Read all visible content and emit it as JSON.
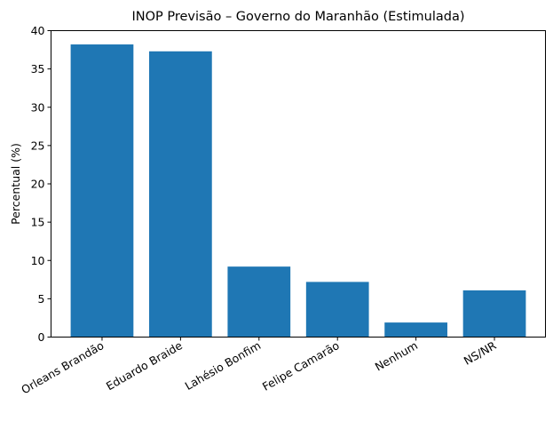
{
  "chart_data": {
    "type": "bar",
    "title": "INOP Previsão – Governo do Maranhão (Estimulada)",
    "xlabel": "",
    "ylabel": "Percentual (%)",
    "categories": [
      "Orleans Brandão",
      "Eduardo Braide",
      "Lahésio Bonfim",
      "Felipe Camarão",
      "Nenhum",
      "NS/NR"
    ],
    "values": [
      38.2,
      37.3,
      9.2,
      7.2,
      1.9,
      6.1
    ],
    "ylim": [
      0,
      40
    ],
    "yticks": [
      0,
      5,
      10,
      15,
      20,
      25,
      30,
      35,
      40
    ],
    "grid": false,
    "bar_color": "#1f77b4"
  }
}
